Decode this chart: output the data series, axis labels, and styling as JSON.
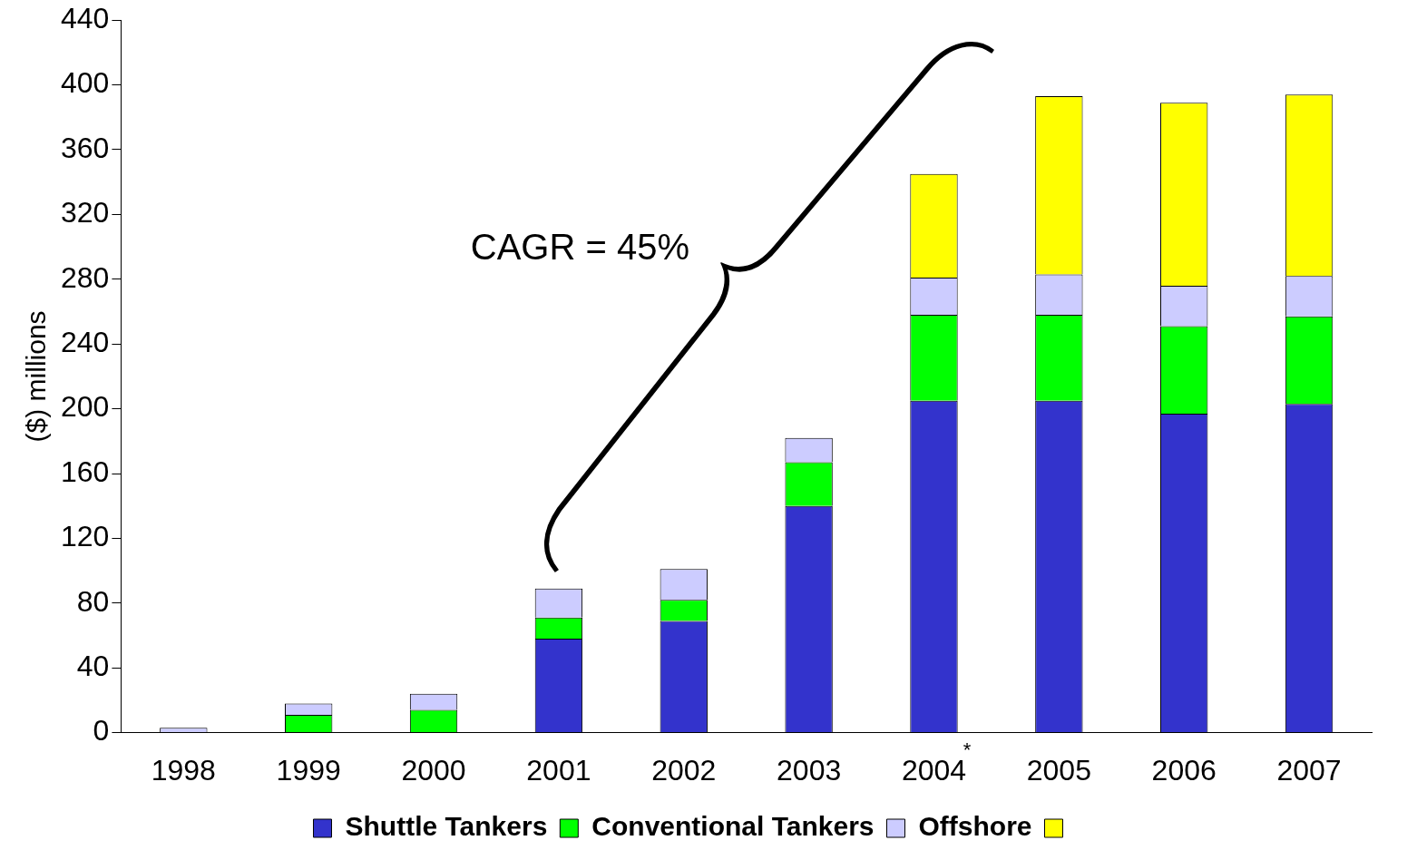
{
  "chart_data": {
    "type": "bar",
    "stacked": true,
    "ylabel": "($) millions",
    "categories": [
      "1998",
      "1999",
      "2000",
      "2001",
      "2002",
      "2003",
      "2004",
      "2005",
      "2006",
      "2007"
    ],
    "series": [
      {
        "name": "Shuttle Tankers",
        "color": "#3333cc",
        "values": [
          0,
          0,
          0,
          58,
          69,
          140,
          205,
          205,
          197,
          203
        ]
      },
      {
        "name": "Conventional Tankers",
        "color": "#00ff00",
        "values": [
          0,
          11,
          14,
          13,
          13,
          27,
          53,
          53,
          54,
          54
        ]
      },
      {
        "name": "Offshore",
        "color": "#ccccff",
        "values": [
          3,
          7,
          10,
          18,
          19,
          15,
          23,
          25,
          25,
          25
        ]
      },
      {
        "color": "#ffff00",
        "values": [
          0,
          0,
          0,
          0,
          0,
          0,
          64,
          110,
          113,
          112
        ]
      }
    ],
    "ylim": [
      0,
      440
    ],
    "yticks": [
      0,
      40,
      80,
      120,
      160,
      200,
      240,
      280,
      320,
      360,
      400,
      440
    ],
    "grid": false,
    "legend": "bottom",
    "annotations": [
      "CAGR = 45%",
      "*"
    ]
  }
}
